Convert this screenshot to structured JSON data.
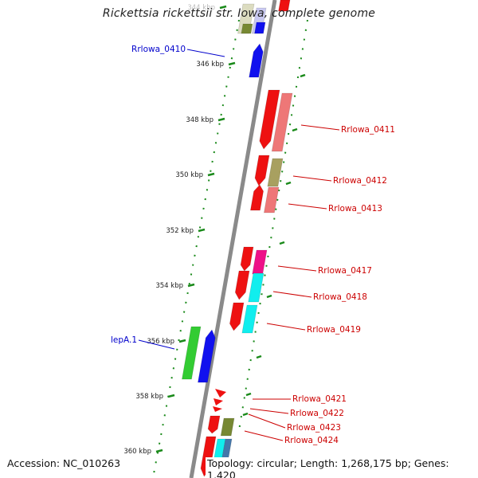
{
  "title": "Rickettsia rickettsii str. Iowa, complete genome",
  "footer": {
    "accession": "Accession: NC_010263",
    "summary": "Topology: circular; Length: 1,268,175 bp; Genes: 1,420"
  },
  "ruler": {
    "ticks": [
      {
        "label": "344 kbp"
      },
      {
        "label": "346 kbp"
      },
      {
        "label": "348 kbp"
      },
      {
        "label": "350 kbp"
      },
      {
        "label": "352 kbp"
      },
      {
        "label": "354 kbp"
      },
      {
        "label": "356 kbp"
      },
      {
        "label": "358 kbp"
      },
      {
        "label": "360 kbp"
      }
    ]
  },
  "genes": [
    {
      "label": "Rrlowa_0410",
      "label_color": "#0000cc",
      "side": "left"
    },
    {
      "label": "Rrlowa_0411",
      "label_color": "#cc0000",
      "side": "right"
    },
    {
      "label": "Rrlowa_0412",
      "label_color": "#cc0000",
      "side": "right"
    },
    {
      "label": "Rrlowa_0413",
      "label_color": "#cc0000",
      "side": "right"
    },
    {
      "label": "Rrlowa_0417",
      "label_color": "#cc0000",
      "side": "right"
    },
    {
      "label": "Rrlowa_0418",
      "label_color": "#cc0000",
      "side": "right"
    },
    {
      "label": "Rrlowa_0419",
      "label_color": "#cc0000",
      "side": "right"
    },
    {
      "label": "lepA.1",
      "label_color": "#0000cc",
      "side": "left"
    },
    {
      "label": "Rrlowa_0421",
      "label_color": "#cc0000",
      "side": "right"
    },
    {
      "label": "Rrlowa_0422",
      "label_color": "#cc0000",
      "side": "right"
    },
    {
      "label": "Rrlowa_0423",
      "label_color": "#cc0000",
      "side": "right"
    },
    {
      "label": "Rrlowa_0424",
      "label_color": "#cc0000",
      "side": "right"
    }
  ],
  "colors": {
    "backbone": "#8a8a8a",
    "ruler_dots": "#1a8a1a",
    "red": "#ee1111",
    "salmon": "#ee7777",
    "olive": "#a8a060",
    "blue": "#1111ee",
    "green": "#33cc33",
    "cyan": "#11eeee",
    "magenta": "#ee1188",
    "darkolive": "#778833",
    "steel": "#4477aa",
    "pale": "#dcdcc0",
    "lavender": "#c8c8f0"
  }
}
